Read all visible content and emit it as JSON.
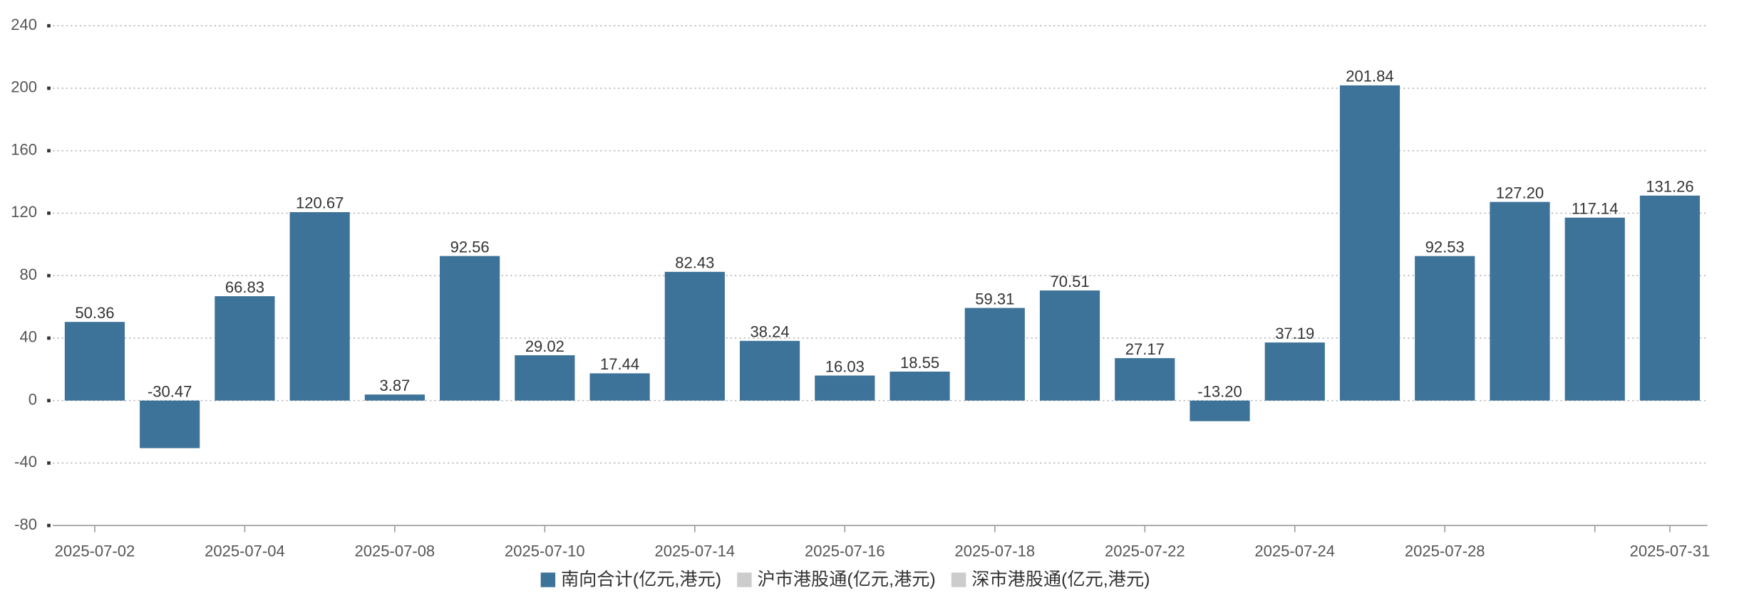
{
  "chart_data": {
    "type": "bar",
    "categories": [
      "2025-07-02",
      null,
      "2025-07-04",
      null,
      "2025-07-08",
      null,
      "2025-07-10",
      null,
      "2025-07-14",
      null,
      "2025-07-16",
      null,
      "2025-07-18",
      null,
      "2025-07-22",
      null,
      "2025-07-24",
      null,
      "2025-07-28",
      null,
      null,
      "2025-07-31"
    ],
    "series": [
      {
        "name": "南向合计(亿元,港元)",
        "color": "#3d7299",
        "values": [
          50.36,
          -30.47,
          66.83,
          120.67,
          3.87,
          92.56,
          29.02,
          17.44,
          82.43,
          38.24,
          16.03,
          18.55,
          59.31,
          70.51,
          27.17,
          -13.2,
          37.19,
          201.84,
          92.53,
          127.2,
          117.14,
          131.26
        ],
        "value_labels": [
          "50.36",
          "-30.47",
          "66.83",
          "120.67",
          "3.87",
          "92.56",
          "29.02",
          "17.44",
          "82.43",
          "38.24",
          "16.03",
          "18.55",
          "59.31",
          "70.51",
          "27.17",
          "-13.20",
          "37.19",
          "201.84",
          "92.53",
          "127.20",
          "117.14",
          "131.26"
        ]
      },
      {
        "name": "沪市港股通(亿元,港元)",
        "color": "#cccccc",
        "hidden": true
      },
      {
        "name": "深市港股通(亿元,港元)",
        "color": "#cccccc",
        "hidden": true
      }
    ],
    "ylim": [
      -80,
      240
    ],
    "yticks": [
      -80,
      -40,
      0,
      40,
      80,
      120,
      160,
      200,
      240
    ],
    "grid": true
  }
}
